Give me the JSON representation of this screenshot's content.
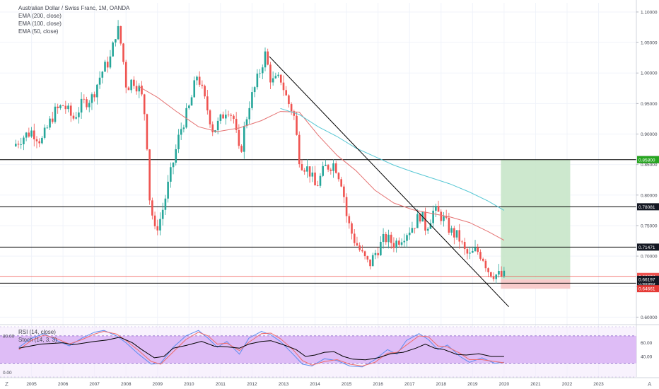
{
  "legend": {
    "title": "Australian Dollar / Swiss Franc, 1M, OANDA",
    "ema200": "EMA (200, close)",
    "ema100": "EMA (100, close)",
    "ema50": "EMA (50, close)"
  },
  "indicator_legend": {
    "rsi": "RSI (14, close)",
    "stoch": "Stoch (14, 3, 3)"
  },
  "corner": {
    "left": "Z",
    "right": "A"
  },
  "colors": {
    "up": "#26a69a",
    "down": "#ef5350",
    "ema50": "#e57373",
    "ema100": "#56c7d4",
    "hline": "#000000",
    "target_zone": "#c8e6c9",
    "stop_zone": "#f8c8c8",
    "rsi_band": "#d9b3f5",
    "rsi_line": "#000000",
    "stoch_k": "#5b8def",
    "stoch_d": "#ef6c6c"
  },
  "chart_data": {
    "type": "candlestick",
    "instrument": "Australian Dollar / Swiss Franc, 1M, OANDA",
    "x_axis": {
      "ticks": [
        "2005",
        "2006",
        "2007",
        "2008",
        "2009",
        "2010",
        "2011",
        "2012",
        "2013",
        "2014",
        "2015",
        "2016",
        "2017",
        "2018",
        "2019",
        "2020",
        "2021",
        "2022",
        "2023"
      ],
      "xlim": [
        2004,
        2024.2
      ]
    },
    "y_axis": {
      "ticks": [
        "1.10000",
        "1.05000",
        "1.00000",
        "0.95000",
        "0.90000",
        "0.85000",
        "0.80000",
        "0.75000",
        "0.70000",
        "0.65000",
        "0.60000"
      ],
      "ylim": [
        0.59,
        1.115
      ]
    },
    "horizontal_levels": [
      {
        "value": 0.85805,
        "label": "0.85805",
        "label_bg": "#131722",
        "label_fg": "#ffffff"
      },
      {
        "value": 0.78081,
        "label": "0.78081",
        "label_bg": "#131722",
        "label_fg": "#ffffff"
      },
      {
        "value": 0.71471,
        "label": "0.71471",
        "label_bg": "#131722",
        "label_fg": "#ffffff"
      },
      {
        "value": 0.65569,
        "label": "0.65569",
        "label_bg": "#131722",
        "label_fg": "#ffffff"
      }
    ],
    "price_labels": [
      {
        "value": 0.858,
        "label": "0.85800",
        "bg": "#26a620",
        "fg": "#ffffff"
      },
      {
        "value": 0.66674,
        "label": "0.66674",
        "bg": "#ef5350",
        "fg": "#ffffff"
      },
      {
        "value": 0.66197,
        "label": "0.66197",
        "bg": "#131722",
        "fg": "#ffffff"
      },
      {
        "value": 0.64661,
        "label": "0.64661",
        "bg": "#e53935",
        "fg": "#ffffff"
      }
    ],
    "current_price_line": 0.66674,
    "trendline": [
      [
        2012.55,
        1.027
      ],
      [
        2020.15,
        0.617
      ]
    ],
    "position": {
      "x_start": 2019.9,
      "x_end": 2022.1,
      "target": 0.858,
      "entry": 0.662,
      "stop": 0.6466
    },
    "ema50": [
      [
        2008.4,
        0.978
      ],
      [
        2009.0,
        0.96
      ],
      [
        2009.6,
        0.937
      ],
      [
        2010.3,
        0.912
      ],
      [
        2010.9,
        0.904
      ],
      [
        2011.6,
        0.91
      ],
      [
        2012.3,
        0.922
      ],
      [
        2012.9,
        0.937
      ],
      [
        2013.5,
        0.936
      ],
      [
        2014.1,
        0.898
      ],
      [
        2014.7,
        0.865
      ],
      [
        2015.3,
        0.84
      ],
      [
        2015.9,
        0.808
      ],
      [
        2016.5,
        0.787
      ],
      [
        2017.1,
        0.776
      ],
      [
        2017.7,
        0.77
      ],
      [
        2018.3,
        0.764
      ],
      [
        2018.9,
        0.755
      ],
      [
        2019.5,
        0.74
      ],
      [
        2020.0,
        0.726
      ]
    ],
    "ema100": [
      [
        2012.9,
        0.942
      ],
      [
        2013.5,
        0.932
      ],
      [
        2014.1,
        0.912
      ],
      [
        2014.7,
        0.896
      ],
      [
        2015.3,
        0.877
      ],
      [
        2015.9,
        0.863
      ],
      [
        2016.5,
        0.849
      ],
      [
        2017.1,
        0.838
      ],
      [
        2017.7,
        0.828
      ],
      [
        2018.3,
        0.818
      ],
      [
        2018.9,
        0.805
      ],
      [
        2019.5,
        0.79
      ],
      [
        2020.0,
        0.775
      ]
    ],
    "candles_anchor": [
      [
        2004.5,
        0.88
      ],
      [
        2004.8,
        0.895
      ],
      [
        2005.1,
        0.905
      ],
      [
        2005.4,
        0.888
      ],
      [
        2005.8,
        0.935
      ],
      [
        2006.1,
        0.948
      ],
      [
        2006.4,
        0.925
      ],
      [
        2006.7,
        0.95
      ],
      [
        2007.0,
        0.96
      ],
      [
        2007.3,
        1.0
      ],
      [
        2007.6,
        1.025
      ],
      [
        2007.8,
        1.078
      ],
      [
        2007.95,
        1.04
      ],
      [
        2008.1,
        0.975
      ],
      [
        2008.3,
        0.99
      ],
      [
        2008.55,
        0.97
      ],
      [
        2008.72,
        0.92
      ],
      [
        2008.82,
        0.8
      ],
      [
        2009.0,
        0.74
      ],
      [
        2009.2,
        0.765
      ],
      [
        2009.5,
        0.835
      ],
      [
        2009.8,
        0.905
      ],
      [
        2010.1,
        0.945
      ],
      [
        2010.35,
        1.0
      ],
      [
        2010.55,
        0.96
      ],
      [
        2010.7,
        0.935
      ],
      [
        2010.85,
        0.905
      ],
      [
        2011.05,
        0.92
      ],
      [
        2011.3,
        0.945
      ],
      [
        2011.5,
        0.925
      ],
      [
        2011.7,
        0.86
      ],
      [
        2011.8,
        0.9
      ],
      [
        2012.0,
        0.95
      ],
      [
        2012.2,
        0.98
      ],
      [
        2012.4,
        1.015
      ],
      [
        2012.5,
        1.03
      ],
      [
        2012.7,
        0.985
      ],
      [
        2013.0,
        0.99
      ],
      [
        2013.2,
        0.955
      ],
      [
        2013.4,
        0.935
      ],
      [
        2013.6,
        0.855
      ],
      [
        2013.9,
        0.84
      ],
      [
        2014.1,
        0.812
      ],
      [
        2014.4,
        0.845
      ],
      [
        2014.7,
        0.852
      ],
      [
        2014.95,
        0.818
      ],
      [
        2015.1,
        0.76
      ],
      [
        2015.3,
        0.73
      ],
      [
        2015.6,
        0.7
      ],
      [
        2015.8,
        0.685
      ],
      [
        2016.0,
        0.705
      ],
      [
        2016.3,
        0.73
      ],
      [
        2016.6,
        0.72
      ],
      [
        2016.9,
        0.735
      ],
      [
        2017.2,
        0.75
      ],
      [
        2017.45,
        0.77
      ],
      [
        2017.6,
        0.745
      ],
      [
        2017.85,
        0.775
      ],
      [
        2018.1,
        0.765
      ],
      [
        2018.4,
        0.74
      ],
      [
        2018.65,
        0.73
      ],
      [
        2018.85,
        0.705
      ],
      [
        2019.0,
        0.7
      ],
      [
        2019.2,
        0.71
      ],
      [
        2019.4,
        0.7
      ],
      [
        2019.6,
        0.675
      ],
      [
        2019.8,
        0.67
      ],
      [
        2020.0,
        0.667
      ]
    ],
    "rsi_panel": {
      "left_ticks": [
        "80.00",
        "0.00"
      ],
      "right_ticks": [
        "60.00",
        "40.00"
      ],
      "band": [
        20,
        80
      ],
      "left_range": [
        -10,
        100
      ],
      "rsi_range": [
        30,
        70
      ],
      "rsi": [
        [
          2004.6,
          52
        ],
        [
          2005.3,
          58
        ],
        [
          2006.0,
          60
        ],
        [
          2006.3,
          57
        ],
        [
          2007.0,
          62
        ],
        [
          2007.4,
          64
        ],
        [
          2007.8,
          68
        ],
        [
          2008.2,
          60
        ],
        [
          2008.5,
          50
        ],
        [
          2008.9,
          38
        ],
        [
          2009.2,
          40
        ],
        [
          2009.5,
          52
        ],
        [
          2009.9,
          56
        ],
        [
          2010.4,
          62
        ],
        [
          2010.8,
          55
        ],
        [
          2011.2,
          54
        ],
        [
          2011.6,
          52
        ],
        [
          2011.9,
          58
        ],
        [
          2012.3,
          62
        ],
        [
          2012.6,
          63
        ],
        [
          2013.0,
          57
        ],
        [
          2013.4,
          50
        ],
        [
          2013.7,
          40
        ],
        [
          2014.0,
          42
        ],
        [
          2014.3,
          46
        ],
        [
          2014.6,
          47
        ],
        [
          2014.9,
          40
        ],
        [
          2015.2,
          36
        ],
        [
          2015.6,
          35
        ],
        [
          2016.0,
          38
        ],
        [
          2016.4,
          44
        ],
        [
          2016.8,
          46
        ],
        [
          2017.2,
          52
        ],
        [
          2017.5,
          58
        ],
        [
          2017.8,
          52
        ],
        [
          2018.1,
          50
        ],
        [
          2018.5,
          43
        ],
        [
          2018.8,
          42
        ],
        [
          2019.2,
          44
        ],
        [
          2019.6,
          40
        ],
        [
          2020.0,
          40
        ]
      ],
      "stoch_k": [
        [
          2004.6,
          55
        ],
        [
          2005.0,
          75
        ],
        [
          2005.4,
          85
        ],
        [
          2005.8,
          70
        ],
        [
          2006.2,
          58
        ],
        [
          2006.6,
          75
        ],
        [
          2007.0,
          88
        ],
        [
          2007.3,
          92
        ],
        [
          2007.7,
          80
        ],
        [
          2008.0,
          65
        ],
        [
          2008.4,
          40
        ],
        [
          2008.8,
          18
        ],
        [
          2009.1,
          20
        ],
        [
          2009.5,
          55
        ],
        [
          2009.9,
          80
        ],
        [
          2010.3,
          92
        ],
        [
          2010.6,
          75
        ],
        [
          2010.9,
          55
        ],
        [
          2011.2,
          68
        ],
        [
          2011.6,
          40
        ],
        [
          2011.9,
          75
        ],
        [
          2012.3,
          90
        ],
        [
          2012.6,
          82
        ],
        [
          2012.9,
          68
        ],
        [
          2013.3,
          40
        ],
        [
          2013.6,
          18
        ],
        [
          2013.9,
          14
        ],
        [
          2014.3,
          30
        ],
        [
          2014.7,
          26
        ],
        [
          2015.1,
          14
        ],
        [
          2015.5,
          12
        ],
        [
          2015.9,
          28
        ],
        [
          2016.3,
          50
        ],
        [
          2016.6,
          40
        ],
        [
          2016.9,
          70
        ],
        [
          2017.3,
          85
        ],
        [
          2017.6,
          72
        ],
        [
          2017.9,
          50
        ],
        [
          2018.2,
          60
        ],
        [
          2018.6,
          35
        ],
        [
          2018.9,
          22
        ],
        [
          2019.3,
          32
        ],
        [
          2019.7,
          20
        ],
        [
          2020.0,
          22
        ]
      ],
      "stoch_d": [
        [
          2004.6,
          50
        ],
        [
          2005.0,
          70
        ],
        [
          2005.4,
          82
        ],
        [
          2005.8,
          74
        ],
        [
          2006.2,
          62
        ],
        [
          2006.6,
          72
        ],
        [
          2007.0,
          84
        ],
        [
          2007.3,
          90
        ],
        [
          2007.7,
          84
        ],
        [
          2008.0,
          70
        ],
        [
          2008.4,
          48
        ],
        [
          2008.8,
          24
        ],
        [
          2009.1,
          18
        ],
        [
          2009.5,
          45
        ],
        [
          2009.9,
          72
        ],
        [
          2010.3,
          88
        ],
        [
          2010.6,
          80
        ],
        [
          2010.9,
          62
        ],
        [
          2011.2,
          64
        ],
        [
          2011.6,
          48
        ],
        [
          2011.9,
          66
        ],
        [
          2012.3,
          85
        ],
        [
          2012.6,
          86
        ],
        [
          2012.9,
          74
        ],
        [
          2013.3,
          50
        ],
        [
          2013.6,
          26
        ],
        [
          2013.9,
          16
        ],
        [
          2014.3,
          24
        ],
        [
          2014.7,
          28
        ],
        [
          2015.1,
          18
        ],
        [
          2015.5,
          14
        ],
        [
          2015.9,
          22
        ],
        [
          2016.3,
          42
        ],
        [
          2016.6,
          44
        ],
        [
          2016.9,
          60
        ],
        [
          2017.3,
          80
        ],
        [
          2017.6,
          78
        ],
        [
          2017.9,
          58
        ],
        [
          2018.2,
          56
        ],
        [
          2018.6,
          42
        ],
        [
          2018.9,
          28
        ],
        [
          2019.3,
          28
        ],
        [
          2019.7,
          24
        ],
        [
          2020.0,
          21
        ]
      ]
    }
  }
}
